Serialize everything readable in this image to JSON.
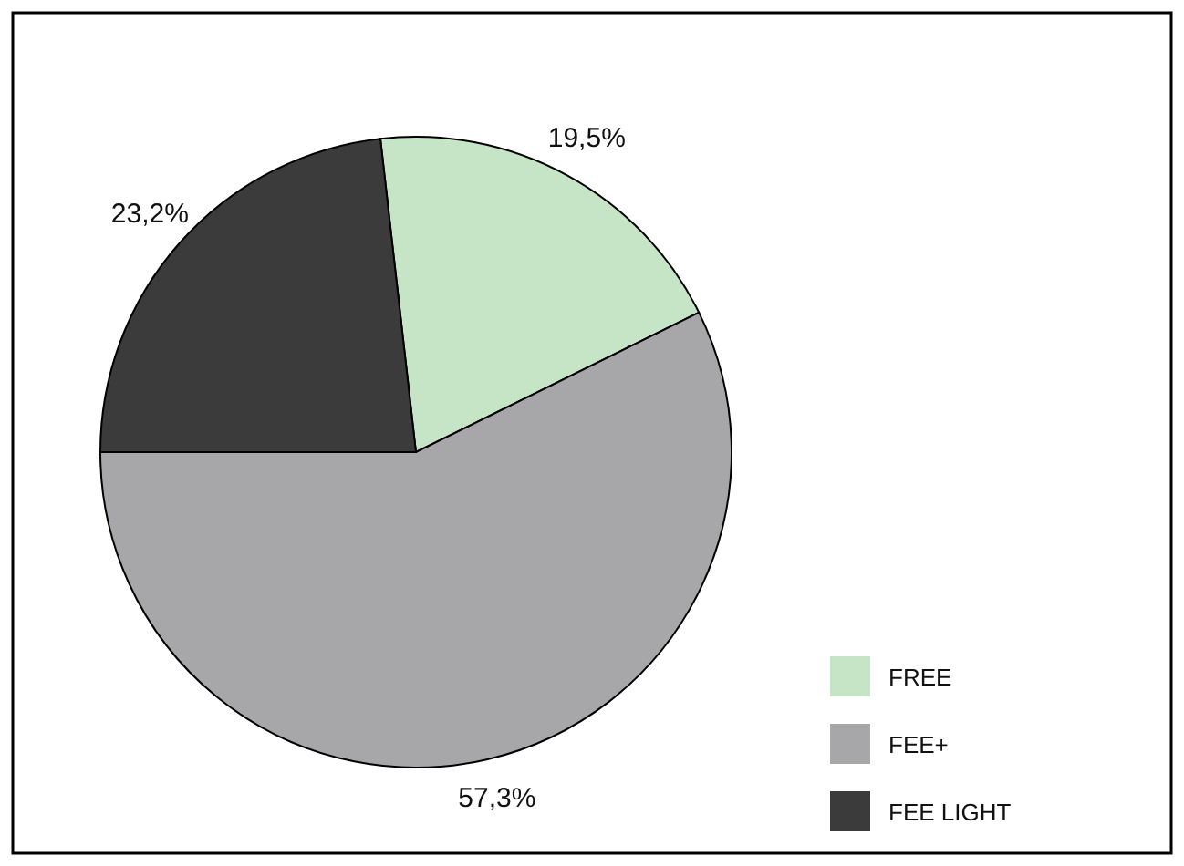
{
  "chart_data": {
    "type": "pie",
    "categories": [
      "FREE",
      "FEE+",
      "FEE LIGHT"
    ],
    "values": [
      19.5,
      57.3,
      23.2
    ],
    "colors": [
      "#c6e4c6",
      "#a7a7aa",
      "#3b3b3b"
    ],
    "value_labels": [
      "19,5%",
      "57,3%",
      "23,2%"
    ],
    "legend": "bottom right"
  }
}
